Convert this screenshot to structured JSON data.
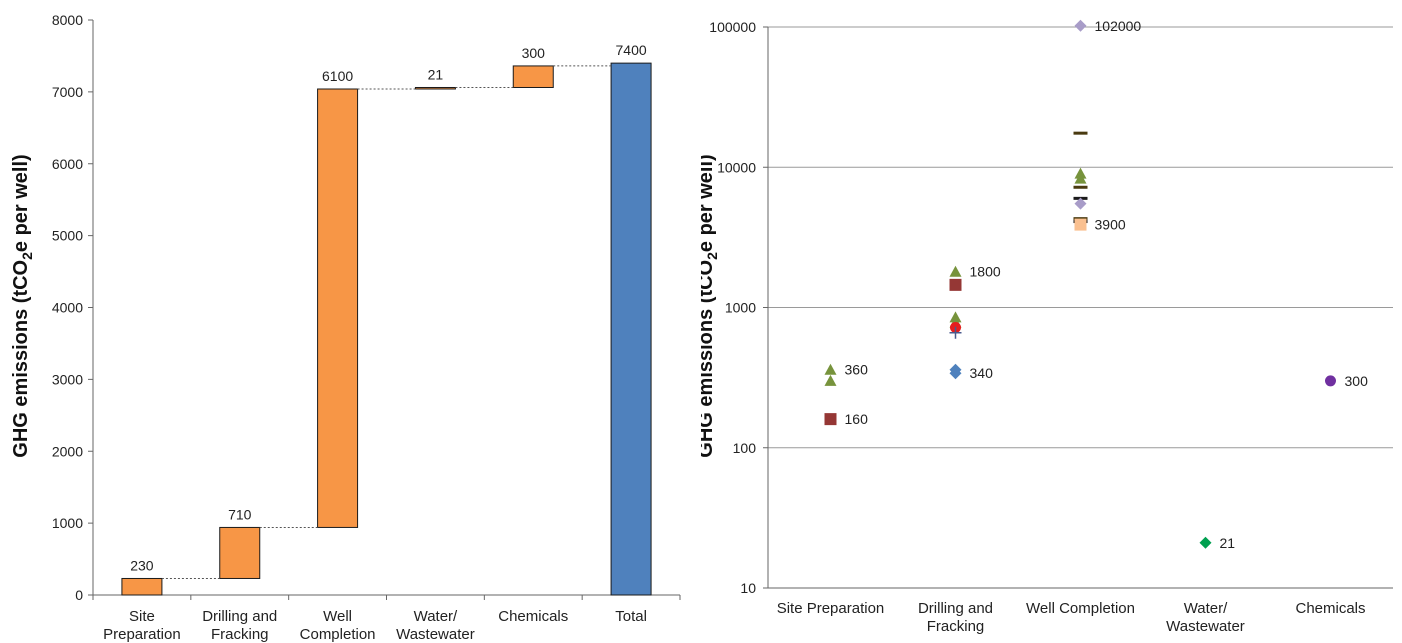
{
  "chart_data": [
    {
      "type": "bar",
      "subtype": "waterfall",
      "title": "",
      "ylabel": "GHG emissions (tCO2e per well)",
      "ylabel_parts": {
        "pre": "GHG emissions (tCO",
        "sub": "2",
        "post": "e per well)"
      },
      "ylim": [
        0,
        8000
      ],
      "yticks": [
        "0",
        "1000",
        "2000",
        "3000",
        "4000",
        "5000",
        "6000",
        "7000",
        "8000"
      ],
      "categories": [
        [
          "Site",
          "Preparation"
        ],
        [
          "Drilling and",
          "Fracking"
        ],
        [
          "Well",
          "Completion"
        ],
        [
          "Water/",
          "Wastewater"
        ],
        [
          "Chemicals"
        ],
        [
          "Total"
        ]
      ],
      "values": [
        230,
        710,
        6100,
        21,
        300,
        7400
      ],
      "value_labels": [
        "230",
        "710",
        "6100",
        "21",
        "300",
        "7400"
      ],
      "colors": {
        "step": "#F79646",
        "total": "#4F81BD",
        "connector": "#555555"
      }
    },
    {
      "type": "scatter",
      "title": "",
      "ylabel": "GHG emissions (tCO2e per well)",
      "ylabel_parts": {
        "pre": "GHG emissions (tCO",
        "sub": "2",
        "post": "e per well)"
      },
      "yscale": "log",
      "ylim": [
        10,
        100000
      ],
      "yticks": [
        "10",
        "100",
        "1000",
        "10000",
        "100000"
      ],
      "grid": true,
      "categories": [
        [
          "Site Preparation"
        ],
        [
          "Drilling and",
          "Fracking"
        ],
        [
          "Well Completion"
        ],
        [
          "Water/",
          "Wastewater"
        ],
        [
          "Chemicals"
        ]
      ],
      "points": [
        {
          "category": 0,
          "y": 360,
          "marker": "triangle",
          "color": "#77933C"
        },
        {
          "category": 0,
          "y": 300,
          "marker": "triangle",
          "color": "#77933C"
        },
        {
          "category": 0,
          "y": 160,
          "marker": "square",
          "color": "#953735"
        },
        {
          "category": 1,
          "y": 1800,
          "marker": "triangle",
          "color": "#77933C"
        },
        {
          "category": 1,
          "y": 1450,
          "marker": "square",
          "color": "#953735"
        },
        {
          "category": 1,
          "y": 850,
          "marker": "triangle",
          "color": "#77933C"
        },
        {
          "category": 1,
          "y": 780,
          "marker": "triangle",
          "color": "#77933C"
        },
        {
          "category": 1,
          "y": 720,
          "marker": "circle",
          "color": "#E61E1E"
        },
        {
          "category": 1,
          "y": 660,
          "marker": "plus",
          "color": "#4A5A8C"
        },
        {
          "category": 1,
          "y": 360,
          "marker": "diamond",
          "color": "#4F81BD"
        },
        {
          "category": 1,
          "y": 340,
          "marker": "diamond",
          "color": "#4F81BD"
        },
        {
          "category": 2,
          "y": 102000,
          "marker": "diamond",
          "color": "#A89CC8"
        },
        {
          "category": 2,
          "y": 17500,
          "marker": "dash",
          "color": "#4A3A10"
        },
        {
          "category": 2,
          "y": 9000,
          "marker": "triangle",
          "color": "#77933C"
        },
        {
          "category": 2,
          "y": 8300,
          "marker": "triangle",
          "color": "#77933C"
        },
        {
          "category": 2,
          "y": 7200,
          "marker": "dash",
          "color": "#4A3A10"
        },
        {
          "category": 2,
          "y": 6000,
          "marker": "dash",
          "color": "#1A1A1A"
        },
        {
          "category": 2,
          "y": 5500,
          "marker": "diamond",
          "color": "#A89CC8"
        },
        {
          "category": 2,
          "y": 4300,
          "marker": "dash",
          "color": "#4A3A10"
        },
        {
          "category": 2,
          "y": 4100,
          "marker": "dash",
          "color": "#1A1A1A"
        },
        {
          "category": 2,
          "y": 3900,
          "marker": "square",
          "color": "#FAC090"
        },
        {
          "category": 3,
          "y": 21,
          "marker": "diamond",
          "color": "#00A050"
        },
        {
          "category": 4,
          "y": 300,
          "marker": "circle",
          "color": "#7030A0"
        }
      ],
      "annotations": [
        {
          "category": 0,
          "y": 360,
          "text": "360"
        },
        {
          "category": 0,
          "y": 160,
          "text": "160"
        },
        {
          "category": 1,
          "y": 1800,
          "text": "1800"
        },
        {
          "category": 1,
          "y": 340,
          "text": "340"
        },
        {
          "category": 2,
          "y": 102000,
          "text": "102000"
        },
        {
          "category": 2,
          "y": 3900,
          "text": "3900"
        },
        {
          "category": 3,
          "y": 21,
          "text": "21"
        },
        {
          "category": 4,
          "y": 300,
          "text": "300"
        }
      ]
    }
  ]
}
